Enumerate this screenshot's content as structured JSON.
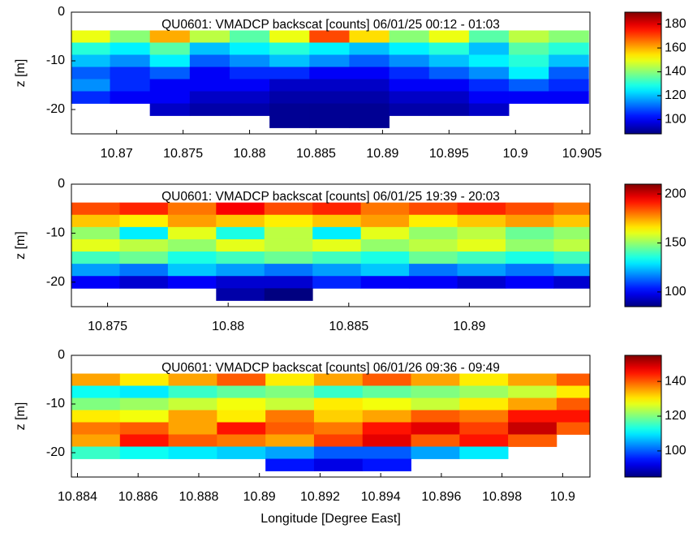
{
  "chart_data": [
    {
      "type": "heatmap",
      "title": "QU0601: VMADCP backscat [counts] 06/01/25 00:12 - 01:03",
      "ylabel": "z [m]",
      "colormap": "jet",
      "xlim": [
        10.8666,
        10.9056
      ],
      "ylim": [
        -25,
        0
      ],
      "xticks": [
        10.87,
        10.875,
        10.88,
        10.885,
        10.89,
        10.895,
        10.9,
        10.905
      ],
      "yticks": [
        0,
        -10,
        -20
      ],
      "clim": [
        88,
        190
      ],
      "cticks": [
        100,
        120,
        140,
        160,
        180
      ],
      "x": [
        10.868,
        10.871,
        10.874,
        10.877,
        10.88,
        10.883,
        10.886,
        10.889,
        10.892,
        10.895,
        10.898,
        10.901,
        10.904
      ],
      "y": [
        -5,
        -7.5,
        -10,
        -12.5,
        -15,
        -17.5,
        -20,
        -22.5
      ],
      "values": [
        [
          150,
          140,
          160,
          145,
          135,
          150,
          170,
          155,
          140,
          150,
          135,
          145,
          140
        ],
        [
          130,
          125,
          135,
          120,
          125,
          130,
          125,
          120,
          125,
          130,
          120,
          135,
          130
        ],
        [
          120,
          115,
          125,
          110,
          115,
          120,
          115,
          110,
          115,
          120,
          125,
          130,
          120
        ],
        [
          110,
          105,
          110,
          100,
          105,
          105,
          100,
          100,
          105,
          110,
          115,
          125,
          110
        ],
        [
          115,
          105,
          100,
          100,
          100,
          95,
          95,
          95,
          100,
          100,
          105,
          110,
          105
        ],
        [
          105,
          100,
          100,
          95,
          95,
          92,
          92,
          92,
          95,
          95,
          100,
          100,
          100
        ],
        [
          null,
          null,
          95,
          92,
          92,
          90,
          90,
          90,
          92,
          92,
          95,
          null,
          null
        ],
        [
          null,
          null,
          null,
          null,
          null,
          90,
          90,
          90,
          null,
          null,
          null,
          null,
          null
        ]
      ]
    },
    {
      "type": "heatmap",
      "title": "QU0601: VMADCP backscat [counts] 06/01/25 19:39 - 20:03",
      "ylabel": "z [m]",
      "colormap": "jet",
      "xlim": [
        10.8735,
        10.895
      ],
      "ylim": [
        -25,
        0
      ],
      "xticks": [
        10.875,
        10.88,
        10.885,
        10.89
      ],
      "yticks": [
        0,
        -10,
        -20
      ],
      "clim": [
        85,
        210
      ],
      "cticks": [
        100,
        150,
        200
      ],
      "x": [
        10.8745,
        10.8765,
        10.8785,
        10.8805,
        10.8825,
        10.8845,
        10.8865,
        10.8885,
        10.8905,
        10.8925,
        10.8945
      ],
      "y": [
        -5,
        -7.5,
        -10,
        -12.5,
        -15,
        -17.5,
        -20,
        -22.5
      ],
      "values": [
        [
          185,
          190,
          180,
          195,
          185,
          190,
          180,
          185,
          190,
          185,
          180
        ],
        [
          170,
          165,
          175,
          170,
          165,
          170,
          175,
          165,
          170,
          175,
          170
        ],
        [
          150,
          130,
          160,
          135,
          155,
          130,
          160,
          150,
          155,
          145,
          150
        ],
        [
          160,
          155,
          150,
          160,
          155,
          160,
          150,
          155,
          160,
          150,
          155
        ],
        [
          140,
          145,
          135,
          140,
          145,
          140,
          135,
          145,
          140,
          135,
          140
        ],
        [
          120,
          115,
          125,
          120,
          115,
          120,
          125,
          115,
          120,
          115,
          120
        ],
        [
          100,
          95,
          100,
          95,
          95,
          105,
          100,
          100,
          95,
          100,
          95
        ],
        [
          null,
          null,
          null,
          90,
          85,
          null,
          null,
          null,
          null,
          null,
          null
        ]
      ]
    },
    {
      "type": "heatmap",
      "title": "QU0601: VMADCP backscat [counts] 06/01/26 09:36 - 09:49",
      "ylabel": "z [m]",
      "xlabel": "Longitude [Degree East]",
      "colormap": "jet",
      "xlim": [
        10.8838,
        10.9009
      ],
      "ylim": [
        -25,
        0
      ],
      "xticks": [
        10.884,
        10.886,
        10.888,
        10.89,
        10.892,
        10.894,
        10.896,
        10.898,
        10.9
      ],
      "yticks": [
        0,
        -10,
        -20
      ],
      "clim": [
        85,
        155
      ],
      "cticks": [
        100,
        120,
        140
      ],
      "x": [
        10.8846,
        10.8862,
        10.8878,
        10.8894,
        10.891,
        10.8926,
        10.8942,
        10.8958,
        10.8974,
        10.899,
        10.9006
      ],
      "y": [
        -5,
        -7.5,
        -10,
        -12.5,
        -15,
        -17.5,
        -20,
        -22.5
      ],
      "values": [
        [
          135,
          130,
          135,
          140,
          130,
          135,
          140,
          135,
          130,
          135,
          140
        ],
        [
          112,
          110,
          115,
          118,
          120,
          115,
          118,
          120,
          122,
          125,
          130
        ],
        [
          120,
          122,
          125,
          128,
          125,
          130,
          128,
          125,
          130,
          135,
          140
        ],
        [
          130,
          128,
          135,
          130,
          138,
          132,
          135,
          140,
          138,
          145,
          145
        ],
        [
          138,
          140,
          135,
          145,
          140,
          138,
          145,
          148,
          142,
          150,
          140
        ],
        [
          135,
          145,
          140,
          138,
          135,
          142,
          148,
          140,
          145,
          140,
          null
        ],
        [
          115,
          112,
          110,
          108,
          105,
          100,
          100,
          105,
          110,
          null,
          null
        ],
        [
          null,
          null,
          null,
          null,
          95,
          92,
          95,
          null,
          null,
          null,
          null
        ]
      ]
    }
  ]
}
